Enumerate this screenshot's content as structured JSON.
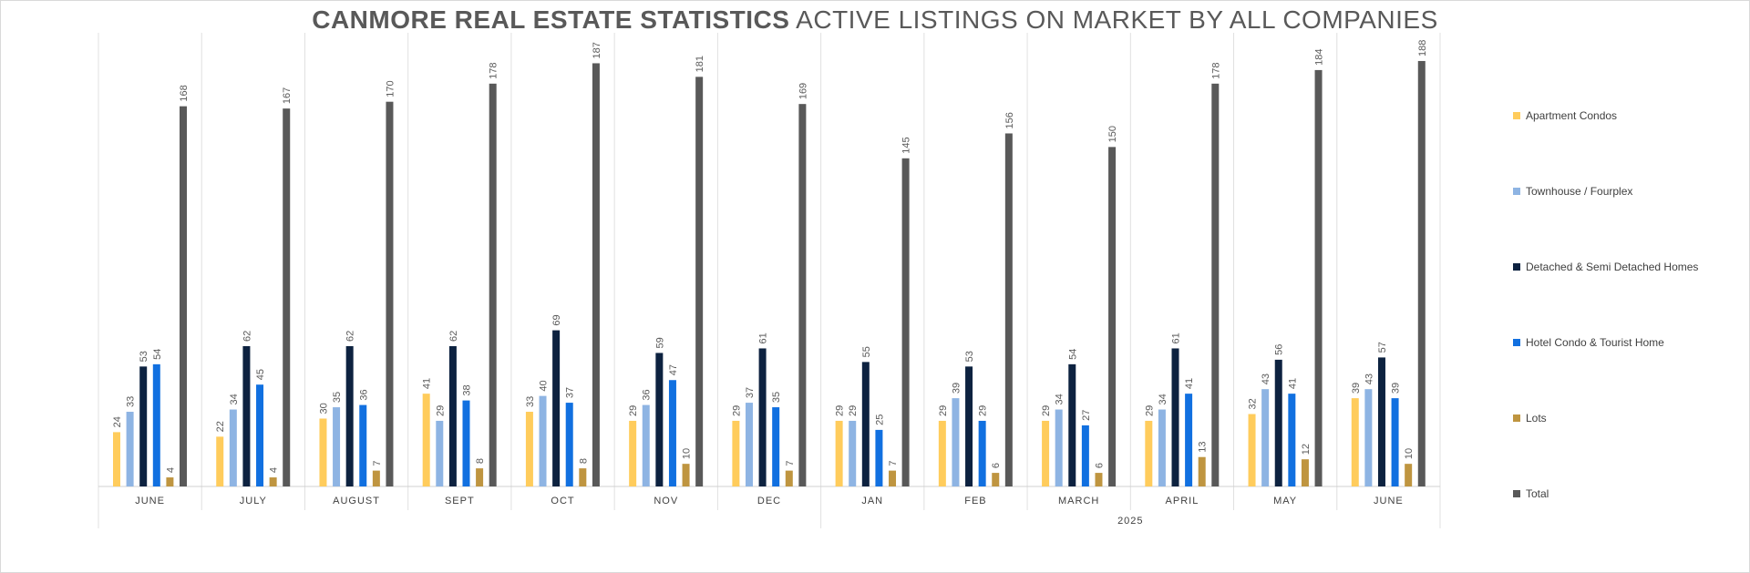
{
  "title": {
    "bold": "CANMORE REAL ESTATE STATISTICS",
    "rest": "ACTIVE LISTINGS ON MARKET BY ALL COMPANIES"
  },
  "chart_data": {
    "type": "bar",
    "categories": [
      "JUNE",
      "JULY",
      "AUGUST",
      "SEPT",
      "OCT",
      "NOV",
      "DEC",
      "JAN",
      "FEB",
      "MARCH",
      "APRIL",
      "MAY",
      "JUNE"
    ],
    "category_groups": [
      {
        "label": "",
        "from": 0,
        "to": 6
      },
      {
        "label": "2025",
        "from": 7,
        "to": 12
      }
    ],
    "series": [
      {
        "name": "Apartment Condos",
        "color": "#FFCC5C",
        "values": [
          24,
          22,
          30,
          41,
          33,
          29,
          29,
          29,
          29,
          29,
          29,
          32,
          39
        ]
      },
      {
        "name": "Townhouse / Fourplex",
        "color": "#8EB4E3",
        "values": [
          33,
          34,
          35,
          29,
          40,
          36,
          37,
          29,
          39,
          34,
          34,
          43,
          43
        ]
      },
      {
        "name": "Detached & Semi Detached Homes",
        "color": "#0D2240",
        "values": [
          53,
          62,
          62,
          62,
          69,
          59,
          61,
          55,
          53,
          54,
          61,
          56,
          57
        ]
      },
      {
        "name": "Hotel Condo & Tourist Home",
        "color": "#1170E0",
        "values": [
          54,
          45,
          36,
          38,
          37,
          47,
          35,
          25,
          29,
          27,
          41,
          41,
          39
        ]
      },
      {
        "name": "Lots",
        "color": "#BF9540",
        "values": [
          4,
          4,
          7,
          8,
          8,
          10,
          7,
          7,
          6,
          6,
          13,
          12,
          10
        ]
      },
      {
        "name": "Total",
        "color": "#595959",
        "values": [
          168,
          167,
          170,
          178,
          187,
          181,
          169,
          145,
          156,
          150,
          178,
          184,
          188
        ]
      }
    ],
    "ylim": [
      0,
      190
    ],
    "grid": false,
    "data_labels": true,
    "legend": "right"
  }
}
